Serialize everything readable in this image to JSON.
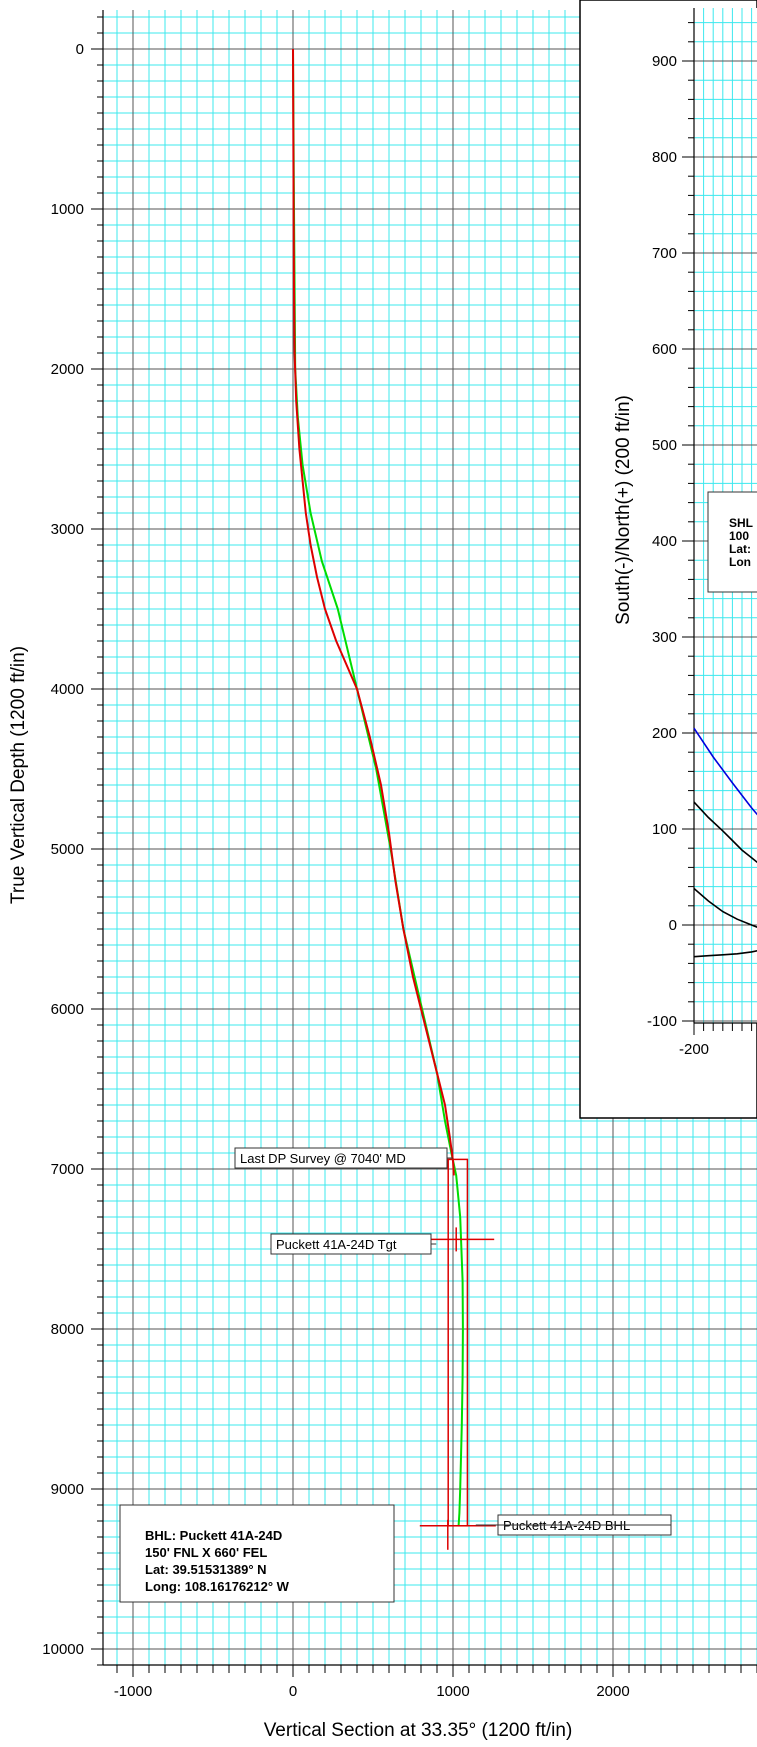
{
  "chart_data": [
    {
      "type": "line",
      "chart": "vertical-section",
      "xlabel": "Vertical Section at 33.35° (1200 ft/in)",
      "ylabel": "True Vertical Depth (1200 ft/in)",
      "xlim": [
        -1200,
        2900
      ],
      "ylim": [
        10100,
        -260
      ],
      "y_inverted": true,
      "grid": true,
      "x_ticks": [
        -1000,
        0,
        1000,
        2000
      ],
      "y_ticks": [
        0,
        1000,
        2000,
        3000,
        4000,
        5000,
        6000,
        7000,
        8000,
        9000,
        10000
      ],
      "x_tick_labels": [
        "-1000",
        "0",
        "1000",
        "2000"
      ],
      "y_tick_labels": [
        "0",
        "1000",
        "2000",
        "3000",
        "4000",
        "5000",
        "6000",
        "7000",
        "8000",
        "9000",
        "10000"
      ],
      "series": [
        {
          "color": "#00dd00",
          "x": [
            0,
            3,
            6,
            10,
            14,
            30,
            60,
            110,
            180,
            280,
            400,
            520,
            610,
            690,
            760,
            830,
            900,
            950,
            990,
            1020,
            1045,
            1060,
            1062,
            1060,
            1055,
            1050,
            1045,
            1040,
            1035
          ],
          "y": [
            0,
            500,
            1000,
            1500,
            2000,
            2300,
            2600,
            2900,
            3200,
            3500,
            4000,
            4500,
            5000,
            5500,
            5800,
            6100,
            6400,
            6700,
            6900,
            7040,
            7300,
            7700,
            8000,
            8300,
            8600,
            8800,
            9000,
            9150,
            9230
          ]
        },
        {
          "color": "#dd0000",
          "x": [
            0,
            2,
            4,
            6,
            10,
            20,
            40,
            60,
            80,
            110,
            150,
            200,
            270,
            400,
            480,
            550,
            600,
            640,
            690,
            750,
            800,
            850,
            900,
            950,
            980,
            1000,
            1005
          ],
          "y": [
            0,
            500,
            1000,
            1500,
            1900,
            2200,
            2500,
            2700,
            2900,
            3100,
            3300,
            3500,
            3700,
            4000,
            4300,
            4600,
            4900,
            5200,
            5500,
            5800,
            6000,
            6200,
            6400,
            6600,
            6800,
            6950,
            7040
          ]
        }
      ],
      "target_box": {
        "x": [
          970,
          1090
        ],
        "y": [
          6940,
          9230
        ]
      },
      "annotations": [
        {
          "text": "Last DP Survey @ 7040' MD",
          "x": 1000,
          "y": 6940
        },
        {
          "text": "Puckett 41A-24D Tgt",
          "x": 1020,
          "y": 7440
        },
        {
          "text": "Puckett 41A-24D BHL",
          "x": 1030,
          "y": 9230
        }
      ],
      "info_box": [
        "BHL: Puckett 41A-24D",
        "150' FNL X 660' FEL",
        "Lat: 39.51531389° N",
        "Long: 108.16176212° W"
      ]
    },
    {
      "type": "line",
      "chart": "plan-view",
      "ylabel": "South(-)/North(+) (200 ft/in)",
      "xlim": [
        -200,
        40
      ],
      "ylim": [
        -100,
        960
      ],
      "grid": true,
      "x_ticks": [
        -200
      ],
      "y_ticks": [
        -100,
        0,
        100,
        200,
        300,
        400,
        500,
        600,
        700,
        800,
        900
      ],
      "x_tick_labels": [
        "-200"
      ],
      "y_tick_labels": [
        "-100",
        "0",
        "100",
        "200",
        "300",
        "400",
        "500",
        "600",
        "700",
        "800",
        "900"
      ],
      "series": [
        {
          "color": "#0000dd",
          "x": [
            -200,
            -180,
            -160,
            -140,
            -128
          ],
          "y": [
            205,
            175,
            148,
            122,
            108
          ]
        },
        {
          "color": "#000000",
          "x": [
            -200,
            -185,
            -170,
            -160,
            -150,
            -140,
            -130
          ],
          "y": [
            128,
            112,
            98,
            88,
            78,
            70,
            62
          ]
        },
        {
          "color": "#000000",
          "x": [
            -200,
            -185,
            -170,
            -155,
            -140,
            -130
          ],
          "y": [
            38,
            25,
            14,
            6,
            0,
            -4
          ]
        },
        {
          "color": "#000000",
          "x": [
            -200,
            -185,
            -170,
            -155,
            -140,
            -130
          ],
          "y": [
            -33,
            -32,
            -31,
            -30,
            -28,
            -26
          ]
        }
      ],
      "info_box": [
        "SHL",
        "100",
        "Lat:",
        "Lon"
      ]
    }
  ]
}
